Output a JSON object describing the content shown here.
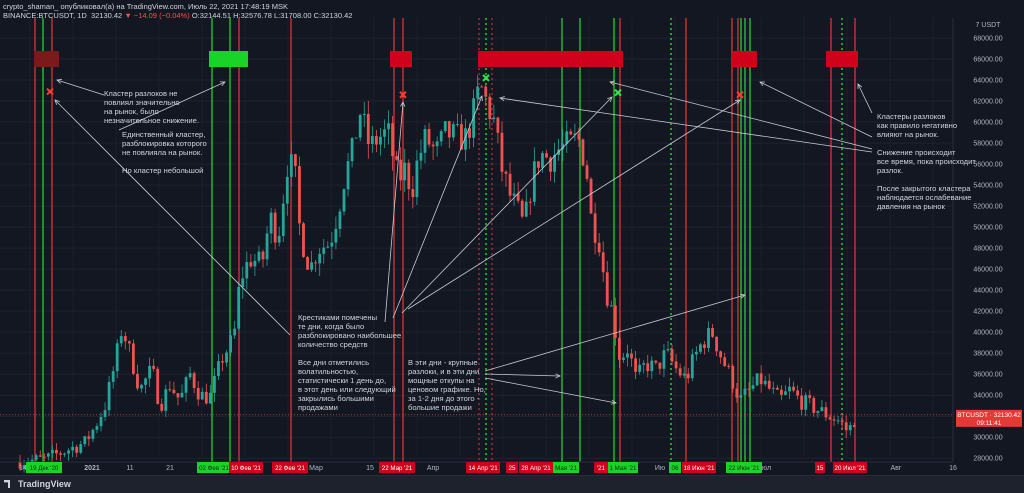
{
  "header": {
    "line1": "crypto_shaman_ опубликовал(а) на TradingView.com, Июль 22, 2021 17:48:19 MSK",
    "symbol": "BINANCE:BTCUSDT, 1D",
    "price": "32130.42",
    "change": "▼ −14.09 (−0.04%)",
    "open": "O:32144.51",
    "high": "H:32576.78",
    "low": "L:31708.00",
    "close": "C:32130.42"
  },
  "brand": "TradingView",
  "colors": {
    "bg": "#131722",
    "up": "#26a69a",
    "down": "#ef5350",
    "red_line": "#e53935",
    "green_line": "#22c432",
    "cluster_red": "#d0021b",
    "cluster_green": "#1ad329"
  },
  "chart_data": {
    "type": "candlestick",
    "y_unit": "USDT",
    "ylim": [
      27000,
      70000
    ],
    "y_ticks": [
      28000,
      30000,
      32000,
      34000,
      36000,
      38000,
      40000,
      42000,
      44000,
      46000,
      48000,
      50000,
      52000,
      54000,
      56000,
      58000,
      60000,
      62000,
      64000,
      66000,
      68000
    ],
    "y_top_label": "7 USDT",
    "price_tag": {
      "label": "BTCUSDT",
      "value": "32130.42",
      "timer": "09:11:41",
      "y": 32130
    },
    "x_ticks": [
      {
        "label": "2021",
        "px": 92,
        "bold": true
      },
      {
        "label": "11",
        "px": 130
      },
      {
        "label": "21",
        "px": 170
      },
      {
        "label": "Мар",
        "px": 316
      },
      {
        "label": "15",
        "px": 370
      },
      {
        "label": "Апр",
        "px": 433
      },
      {
        "label": "Июл",
        "px": 764
      },
      {
        "label": "Авг",
        "px": 896
      },
      {
        "label": "16",
        "px": 953
      },
      {
        "label": "14",
        "px": 23
      },
      {
        "label": "Ию",
        "px": 660
      }
    ],
    "date_tags": [
      {
        "label": "19 Дек '20",
        "color": "#1ad329",
        "px": 44,
        "w": 36
      },
      {
        "label": "02 Фев '21",
        "color": "#1ad329",
        "px": 214,
        "w": 34
      },
      {
        "label": "10 Фев '21",
        "color": "#d0021b",
        "px": 246,
        "w": 34
      },
      {
        "label": "22 Фев '21",
        "color": "#d0021b",
        "px": 290,
        "w": 36
      },
      {
        "label": "22 Мар '21",
        "color": "#d0021b",
        "px": 397,
        "w": 36
      },
      {
        "label": "14 Апр '21",
        "color": "#d0021b",
        "px": 483,
        "w": 34
      },
      {
        "label": "25",
        "color": "#d0021b",
        "px": 512,
        "w": 12
      },
      {
        "label": "28 Апр '21",
        "color": "#d0021b",
        "px": 536,
        "w": 34
      },
      {
        "label": "Мая '21",
        "color": "#1ad329",
        "px": 566,
        "w": 26
      },
      {
        "label": "'21",
        "color": "#d0021b",
        "px": 601,
        "w": 14
      },
      {
        "label": "1 Мая '21",
        "color": "#1ad329",
        "px": 623,
        "w": 30
      },
      {
        "label": "06",
        "color": "#1ad329",
        "px": 675,
        "w": 12
      },
      {
        "label": "18 Июн '21",
        "color": "#d0021b",
        "px": 699,
        "w": 34
      },
      {
        "label": "22 Июн '21",
        "color": "#1ad329",
        "px": 744,
        "w": 36
      },
      {
        "label": "15",
        "color": "#d0021b",
        "px": 820,
        "w": 10
      },
      {
        "label": "20 Июл '21",
        "color": "#d0021b",
        "px": 850,
        "w": 34
      }
    ],
    "vertical_lines": [
      {
        "color": "red",
        "px": [
          35,
          52,
          239,
          291,
          394,
          403,
          620,
          686,
          732,
          738,
          831,
          855
        ]
      },
      {
        "color": "green",
        "px": [
          43,
          212,
          230,
          562,
          580,
          614,
          741,
          745,
          750
        ]
      },
      {
        "color": "green_dotted",
        "px": [
          486,
          671,
          842
        ]
      },
      {
        "color": "red_dotted",
        "px": [
          479,
          492
        ]
      }
    ],
    "clusters": [
      {
        "px": [
          34,
          59
        ],
        "y": 66000,
        "color": "#7a1a1a"
      },
      {
        "px": [
          209,
          248
        ],
        "y": 66000,
        "color": "#1ad329"
      },
      {
        "px": [
          390,
          412
        ],
        "y": 66000,
        "color": "#d0021b"
      },
      {
        "px": [
          478,
          623
        ],
        "y": 66000,
        "color": "#d0021b"
      },
      {
        "px": [
          732,
          757
        ],
        "y": 66000,
        "color": "#d0021b"
      },
      {
        "px": [
          826,
          858
        ],
        "y": 66000,
        "color": "#d0021b"
      }
    ],
    "crosses": [
      {
        "px": 50,
        "y": 62900,
        "color": "red"
      },
      {
        "px": 403,
        "y": 62600,
        "color": "red"
      },
      {
        "px": 486,
        "y": 64200,
        "color": "green"
      },
      {
        "px": 618,
        "y": 62800,
        "color": "green"
      },
      {
        "px": 740,
        "y": 62600,
        "color": "red"
      }
    ],
    "path_keypoints": [
      [
        20,
        27700
      ],
      [
        45,
        27900
      ],
      [
        60,
        28500
      ],
      [
        85,
        29500
      ],
      [
        95,
        31000
      ],
      [
        105,
        33000
      ],
      [
        115,
        37000
      ],
      [
        122,
        40500
      ],
      [
        130,
        38000
      ],
      [
        140,
        34500
      ],
      [
        152,
        36500
      ],
      [
        160,
        33000
      ],
      [
        170,
        35000
      ],
      [
        180,
        33500
      ],
      [
        190,
        36000
      ],
      [
        200,
        34000
      ],
      [
        210,
        33800
      ],
      [
        222,
        37500
      ],
      [
        234,
        39500
      ],
      [
        240,
        45000
      ],
      [
        250,
        47000
      ],
      [
        262,
        46500
      ],
      [
        270,
        51000
      ],
      [
        278,
        49000
      ],
      [
        288,
        56500
      ],
      [
        295,
        55000
      ],
      [
        300,
        49500
      ],
      [
        310,
        46000
      ],
      [
        318,
        48000
      ],
      [
        330,
        48500
      ],
      [
        338,
        51500
      ],
      [
        345,
        55000
      ],
      [
        352,
        57000
      ],
      [
        360,
        61000
      ],
      [
        370,
        57500
      ],
      [
        378,
        58500
      ],
      [
        388,
        59000
      ],
      [
        398,
        54500
      ],
      [
        405,
        55500
      ],
      [
        412,
        53500
      ],
      [
        418,
        56500
      ],
      [
        426,
        58500
      ],
      [
        436,
        57000
      ],
      [
        446,
        59000
      ],
      [
        456,
        58500
      ],
      [
        466,
        58500
      ],
      [
        474,
        61000
      ],
      [
        480,
        63500
      ],
      [
        486,
        62000
      ],
      [
        494,
        60000
      ],
      [
        502,
        55500
      ],
      [
        510,
        53000
      ],
      [
        518,
        51500
      ],
      [
        524,
        50000
      ],
      [
        532,
        54500
      ],
      [
        540,
        57000
      ],
      [
        550,
        56500
      ],
      [
        560,
        57500
      ],
      [
        572,
        58000
      ],
      [
        578,
        58500
      ],
      [
        586,
        56000
      ],
      [
        592,
        50000
      ],
      [
        598,
        49500
      ],
      [
        606,
        44000
      ],
      [
        612,
        42000
      ],
      [
        620,
        37500
      ],
      [
        628,
        38500
      ],
      [
        636,
        35500
      ],
      [
        646,
        37000
      ],
      [
        656,
        36500
      ],
      [
        666,
        38000
      ],
      [
        676,
        36500
      ],
      [
        686,
        35500
      ],
      [
        694,
        37500
      ],
      [
        702,
        39000
      ],
      [
        712,
        40000
      ],
      [
        722,
        37500
      ],
      [
        732,
        35500
      ],
      [
        740,
        33500
      ],
      [
        750,
        34500
      ],
      [
        760,
        35500
      ],
      [
        770,
        34500
      ],
      [
        780,
        33500
      ],
      [
        790,
        34500
      ],
      [
        800,
        33500
      ],
      [
        810,
        33000
      ],
      [
        820,
        32500
      ],
      [
        830,
        32000
      ],
      [
        840,
        31500
      ],
      [
        848,
        30500
      ],
      [
        856,
        32000
      ]
    ],
    "arrows": [
      {
        "from": [
          104,
          95
        ],
        "to": [
          57,
          80
        ]
      },
      {
        "from": [
          119,
          130
        ],
        "to": [
          225,
          82
        ]
      },
      {
        "from": [
          290,
          335
        ],
        "to": [
          55,
          100
        ]
      },
      {
        "from": [
          385,
          322
        ],
        "to": [
          403,
          102
        ]
      },
      {
        "from": [
          393,
          318
        ],
        "to": [
          482,
          96
        ]
      },
      {
        "from": [
          402,
          313
        ],
        "to": [
          612,
          97
        ]
      },
      {
        "from": [
          408,
          309
        ],
        "to": [
          740,
          100
        ]
      },
      {
        "from": [
          872,
          137
        ],
        "to": [
          760,
          82
        ]
      },
      {
        "from": [
          872,
          149
        ],
        "to": [
          610,
          82
        ]
      },
      {
        "from": [
          872,
          152
        ],
        "to": [
          500,
          98
        ]
      },
      {
        "from": [
          872,
          113
        ],
        "to": [
          858,
          84
        ]
      },
      {
        "from": [
          485,
          371
        ],
        "to": [
          745,
          295
        ]
      },
      {
        "from": [
          485,
          374
        ],
        "to": [
          560,
          376
        ]
      },
      {
        "from": [
          485,
          378
        ],
        "to": [
          616,
          403
        ]
      }
    ]
  },
  "notes": {
    "n1": "Кластер разлоков не\nповлиял значительно\nна рынок, было\nнезначительное снижение.",
    "n2": "Единственный кластер,\nразблокировка которого\nне повлияла на рынок.\n\nНо кластер небольшой",
    "n3": "Крестиками помечены\nте дни, когда было\nразблокировано наибольшее\nколичество средств\n\nВсе дни отметились\nволатильностью,\nстатистически 1 день до,\nв этот день или следующий\nзакрылись большими\nпродажами",
    "n4": "В эти дни - крупные\nразлоки, и в эти дни\nмощные откупы на\nценовом графике. Но,\nза 1-2 дня до этого -\nбольшие продажи",
    "n5": "Кластеры разлоков\nкак правило негативно\nвлияют на рынок.\n\nСнижение происходит\nвсе время, пока происходит\nразлок.\n\nПосле закрытого кластера\nнаблюдается ослабевание\nдавления на рынок"
  }
}
